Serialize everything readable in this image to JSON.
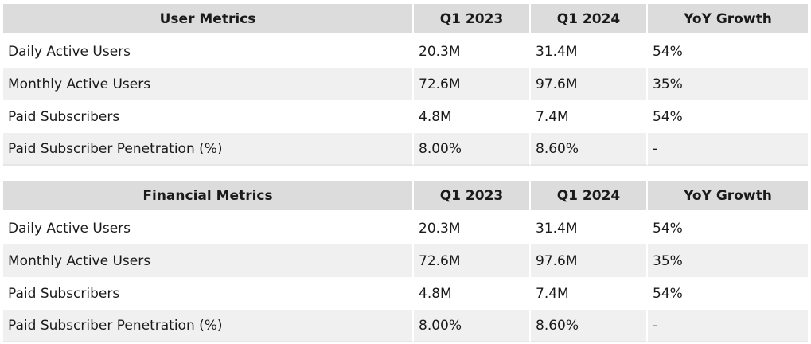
{
  "tables": [
    {
      "headers": [
        "User Metrics",
        "Q1 2023",
        "Q1 2024",
        "YoY Growth"
      ],
      "rows": [
        [
          "Daily Active Users",
          "20.3M",
          "31.4M",
          "54%"
        ],
        [
          "Monthly Active Users",
          "72.6M",
          "97.6M",
          "35%"
        ],
        [
          "Paid Subscribers",
          "4.8M",
          "7.4M",
          "54%"
        ],
        [
          "Paid Subscriber Penetration (%)",
          "8.00%",
          "8.60%",
          "-"
        ]
      ]
    },
    {
      "headers": [
        "Financial Metrics",
        "Q1 2023",
        "Q1 2024",
        "YoY Growth"
      ],
      "rows": [
        [
          "Daily Active Users",
          "20.3M",
          "31.4M",
          "54%"
        ],
        [
          "Monthly Active Users",
          "72.6M",
          "97.6M",
          "35%"
        ],
        [
          "Paid Subscribers",
          "4.8M",
          "7.4M",
          "54%"
        ],
        [
          "Paid Subscriber Penetration (%)",
          "8.00%",
          "8.60%",
          "-"
        ]
      ]
    }
  ],
  "colors": {
    "header_bg": "#dcdcdc",
    "row_alt_bg": "#f0f0f0",
    "row_bg": "#ffffff",
    "text": "#1a1a1a"
  }
}
